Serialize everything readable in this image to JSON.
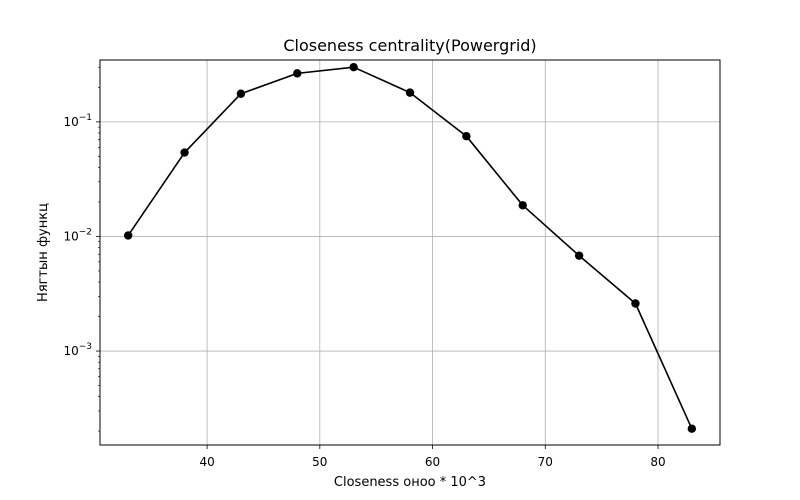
{
  "chart_data": {
    "type": "line",
    "title": "Closeness centrality(Powergrid)",
    "xlabel": "Closeness онoo * 10^3",
    "ylabel": "Нягтын функц",
    "yscale": "log",
    "xlim": [
      30.5,
      85.5
    ],
    "ylim_exponent": [
      -3.82,
      -0.46
    ],
    "grid": true,
    "x_ticks": [
      40,
      50,
      60,
      70,
      80
    ],
    "y_ticks": [
      {
        "base": "10",
        "exp": "−3",
        "value": 0.001
      },
      {
        "base": "10",
        "exp": "−2",
        "value": 0.01
      },
      {
        "base": "10",
        "exp": "−1",
        "value": 0.1
      }
    ],
    "series": [
      {
        "x": [
          33,
          38,
          43,
          48,
          53,
          58,
          63,
          68,
          73,
          78,
          83
        ],
        "y": [
          0.0102,
          0.054,
          0.176,
          0.265,
          0.3,
          0.18,
          0.075,
          0.0187,
          0.0068,
          0.0026,
          0.00021
        ],
        "color": "#000000",
        "marker": "circle"
      }
    ]
  }
}
